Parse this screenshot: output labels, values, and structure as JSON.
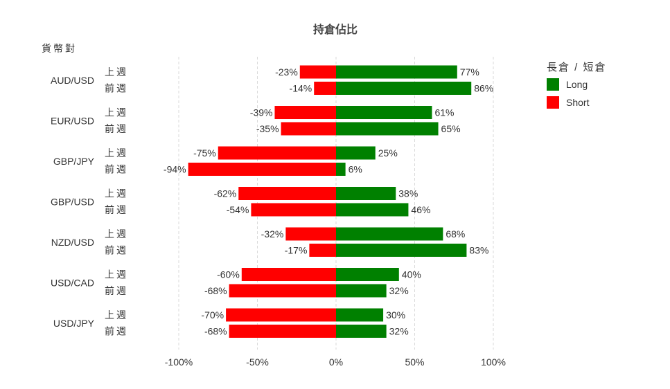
{
  "chart_data": {
    "type": "bar",
    "orientation": "horizontal-diverging",
    "title": "持倉佔比",
    "ylabel": "貨幣對",
    "xlim": [
      -100,
      100
    ],
    "x_ticks": [
      -100,
      -50,
      0,
      50,
      100
    ],
    "x_tick_labels": [
      "-100%",
      "-50%",
      "0%",
      "50%",
      "100%"
    ],
    "grid": true,
    "legend": {
      "title": "長倉 / 短倉",
      "placement": "top-right",
      "items": [
        {
          "name": "Long",
          "color": "#008000"
        },
        {
          "name": "Short",
          "color": "#ff0000"
        }
      ]
    },
    "groups": [
      {
        "pair": "AUD/USD",
        "rows": [
          {
            "period": "上週",
            "short": -23,
            "long": 77
          },
          {
            "period": "前週",
            "short": -14,
            "long": 86
          }
        ]
      },
      {
        "pair": "EUR/USD",
        "rows": [
          {
            "period": "上週",
            "short": -39,
            "long": 61
          },
          {
            "period": "前週",
            "short": -35,
            "long": 65
          }
        ]
      },
      {
        "pair": "GBP/JPY",
        "rows": [
          {
            "period": "上週",
            "short": -75,
            "long": 25
          },
          {
            "period": "前週",
            "short": -94,
            "long": 6
          }
        ]
      },
      {
        "pair": "GBP/USD",
        "rows": [
          {
            "period": "上週",
            "short": -62,
            "long": 38
          },
          {
            "period": "前週",
            "short": -54,
            "long": 46
          }
        ]
      },
      {
        "pair": "NZD/USD",
        "rows": [
          {
            "period": "上週",
            "short": -32,
            "long": 68
          },
          {
            "period": "前週",
            "short": -17,
            "long": 83
          }
        ]
      },
      {
        "pair": "USD/CAD",
        "rows": [
          {
            "period": "上週",
            "short": -60,
            "long": 40
          },
          {
            "period": "前週",
            "short": -68,
            "long": 32
          }
        ]
      },
      {
        "pair": "USD/JPY",
        "rows": [
          {
            "period": "上週",
            "short": -70,
            "long": 30
          },
          {
            "period": "前週",
            "short": -68,
            "long": 32
          }
        ]
      }
    ]
  }
}
